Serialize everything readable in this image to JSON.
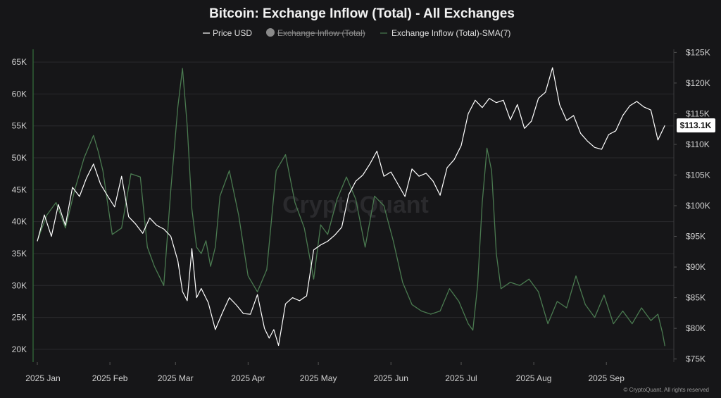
{
  "chart_data": {
    "type": "line",
    "title": "Bitcoin: Exchange Inflow (Total) - All Exchanges",
    "legend": {
      "placement": "top-center",
      "items": [
        {
          "name": "Price USD",
          "state": "visible",
          "color": "#ffffff"
        },
        {
          "name": "Exchange Inflow (Total)",
          "state": "hidden",
          "color": "#8a8a8a"
        },
        {
          "name": "Exchange Inflow (Total)-SMA(7)",
          "state": "visible",
          "color": "#4a7a50"
        }
      ]
    },
    "x_ticks": [
      "2025 Jan",
      "2025 Feb",
      "2025 Mar",
      "2025 Apr",
      "2025 May",
      "2025 Jun",
      "2025 Jul",
      "2025 Aug",
      "2025 Sep"
    ],
    "x_tick_days": [
      0,
      31,
      59,
      90,
      120,
      151,
      181,
      212,
      243
    ],
    "x_range_days": [
      0,
      270
    ],
    "left_axis": {
      "ticks": [
        65000,
        60000,
        55000,
        50000,
        45000,
        40000,
        35000,
        30000,
        25000,
        20000
      ],
      "tick_labels": [
        "65K",
        "60K",
        "55K",
        "50K",
        "45K",
        "40K",
        "35K",
        "30K",
        "25K",
        "20K"
      ],
      "ylim": [
        18000,
        67000
      ]
    },
    "right_axis": {
      "ticks": [
        125000,
        120000,
        115000,
        110000,
        105000,
        100000,
        95000,
        90000,
        85000,
        80000,
        75000
      ],
      "tick_labels": [
        "$125K",
        "$120K",
        "$115K",
        "$110K",
        "$105K",
        "$100K",
        "$95K",
        "$90K",
        "$85K",
        "$80K",
        "$75K"
      ],
      "ylim": [
        74500,
        125500
      ]
    },
    "grid": true,
    "price_badge": "$113.1K",
    "watermark": "CryptoQuant",
    "credit": "© CryptoQuant. All rights reserved",
    "series": [
      {
        "name": "Price USD",
        "axis": "right",
        "color": "#ffffff",
        "x": [
          0,
          3,
          6,
          9,
          12,
          15,
          18,
          21,
          24,
          27,
          30,
          33,
          36,
          39,
          42,
          45,
          48,
          51,
          54,
          57,
          60,
          62,
          64,
          66,
          68,
          70,
          73,
          76,
          79,
          82,
          85,
          88,
          91,
          94,
          97,
          99,
          101,
          103,
          106,
          109,
          112,
          115,
          118,
          121,
          124,
          127,
          130,
          133,
          136,
          139,
          142,
          145,
          148,
          151,
          154,
          157,
          160,
          163,
          166,
          169,
          172,
          175,
          178,
          181,
          184,
          187,
          190,
          193,
          196,
          199,
          202,
          205,
          208,
          211,
          214,
          217,
          220,
          223,
          226,
          229,
          232,
          235,
          238,
          241,
          244,
          247,
          250,
          253,
          256,
          259,
          262,
          265,
          268
        ],
        "values": [
          94200,
          98500,
          95000,
          100200,
          96800,
          103000,
          101500,
          104500,
          106800,
          103500,
          101600,
          99800,
          104800,
          98200,
          97000,
          95500,
          98000,
          96800,
          96200,
          95000,
          91000,
          86000,
          84500,
          93000,
          85000,
          86500,
          84200,
          79800,
          82500,
          85000,
          83800,
          82400,
          82300,
          85500,
          80000,
          78400,
          79800,
          77200,
          84000,
          85000,
          84500,
          85300,
          92800,
          93600,
          94200,
          95200,
          96500,
          101800,
          104000,
          105000,
          106800,
          108900,
          104800,
          105500,
          103500,
          101500,
          106000,
          104800,
          105300,
          104000,
          101700,
          106200,
          107500,
          109800,
          115000,
          117200,
          116000,
          117500,
          116800,
          117200,
          114000,
          116500,
          112600,
          113800,
          117500,
          118500,
          122500,
          116500,
          113900,
          114700,
          111800,
          110500,
          109500,
          109200,
          111600,
          112200,
          114700,
          116300,
          117000,
          116100,
          115600,
          110700,
          113100
        ]
      },
      {
        "name": "Exchange Inflow (Total)-SMA(7)",
        "axis": "left",
        "color": "#4a7a50",
        "x": [
          0,
          4,
          8,
          12,
          16,
          20,
          24,
          26,
          28,
          32,
          36,
          40,
          44,
          47,
          50,
          54,
          57,
          60,
          62,
          64,
          66,
          68,
          70,
          72,
          74,
          76,
          78,
          82,
          86,
          90,
          94,
          98,
          102,
          106,
          110,
          114,
          118,
          121,
          124,
          128,
          132,
          136,
          140,
          144,
          148,
          152,
          156,
          160,
          164,
          168,
          172,
          176,
          180,
          184,
          186,
          188,
          190,
          192,
          194,
          196,
          198,
          202,
          206,
          210,
          214,
          218,
          222,
          226,
          230,
          234,
          238,
          242,
          246,
          250,
          254,
          258,
          262,
          265,
          267,
          268
        ],
        "values": [
          37000,
          41000,
          43000,
          39000,
          45000,
          50000,
          53500,
          51000,
          48000,
          38000,
          39000,
          47500,
          47000,
          36000,
          33000,
          30000,
          45000,
          58000,
          64000,
          55000,
          42000,
          36000,
          35000,
          37000,
          33000,
          36000,
          44000,
          48000,
          41000,
          31500,
          29000,
          32500,
          48000,
          50500,
          43000,
          39000,
          31000,
          39500,
          38000,
          43500,
          47000,
          43500,
          36000,
          44000,
          42500,
          37000,
          30500,
          27000,
          26000,
          25500,
          26000,
          29500,
          27500,
          24000,
          23000,
          30000,
          43000,
          51500,
          48000,
          35000,
          29500,
          30500,
          30000,
          31000,
          29000,
          24000,
          27500,
          26500,
          31500,
          27000,
          25000,
          28500,
          24000,
          26000,
          24000,
          26500,
          24500,
          25500,
          22500,
          20500
        ]
      }
    ]
  }
}
